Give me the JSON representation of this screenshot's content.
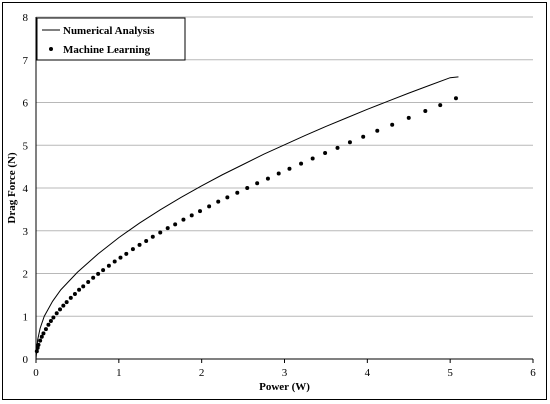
{
  "chart_data": {
    "type": "line",
    "title": "",
    "xlabel": "Power (W)",
    "ylabel": "Drag Force (N)",
    "xlim": [
      0,
      6
    ],
    "ylim": [
      0,
      8
    ],
    "xticks": [
      "0",
      "1",
      "2",
      "3",
      "4",
      "5",
      "6"
    ],
    "yticks": [
      "0",
      "1",
      "2",
      "3",
      "4",
      "5",
      "6",
      "7",
      "8"
    ],
    "grid": "horizontal",
    "legend_position": "top-left",
    "series": [
      {
        "name": "Numerical Analysis",
        "style": "line",
        "color": "#000000",
        "x": [
          0,
          0.02,
          0.05,
          0.1,
          0.2,
          0.3,
          0.5,
          0.75,
          1.0,
          1.25,
          1.5,
          1.75,
          2.0,
          2.25,
          2.5,
          2.75,
          3.0,
          3.25,
          3.5,
          3.75,
          4.0,
          4.25,
          4.5,
          4.75,
          5.0,
          5.1
        ],
        "y": [
          0,
          0.45,
          0.72,
          1.0,
          1.35,
          1.62,
          2.03,
          2.46,
          2.84,
          3.18,
          3.49,
          3.78,
          4.05,
          4.31,
          4.55,
          4.79,
          5.01,
          5.23,
          5.44,
          5.64,
          5.84,
          6.03,
          6.22,
          6.4,
          6.58,
          6.6
        ]
      },
      {
        "name": "Machine Learning",
        "style": "markers",
        "color": "#000000",
        "x": [
          0.01,
          0.02,
          0.03,
          0.05,
          0.07,
          0.09,
          0.12,
          0.15,
          0.18,
          0.21,
          0.25,
          0.29,
          0.33,
          0.37,
          0.42,
          0.47,
          0.52,
          0.57,
          0.63,
          0.69,
          0.75,
          0.81,
          0.88,
          0.95,
          1.02,
          1.09,
          1.17,
          1.25,
          1.33,
          1.41,
          1.5,
          1.59,
          1.68,
          1.78,
          1.88,
          1.98,
          2.09,
          2.2,
          2.31,
          2.43,
          2.55,
          2.67,
          2.8,
          2.93,
          3.06,
          3.2,
          3.34,
          3.49,
          3.64,
          3.79,
          3.95,
          4.12,
          4.3,
          4.5,
          4.7,
          4.88,
          5.07
        ],
        "y": [
          0.18,
          0.26,
          0.33,
          0.43,
          0.52,
          0.6,
          0.7,
          0.8,
          0.89,
          0.97,
          1.07,
          1.16,
          1.25,
          1.33,
          1.43,
          1.52,
          1.62,
          1.7,
          1.8,
          1.9,
          1.99,
          2.08,
          2.18,
          2.28,
          2.37,
          2.46,
          2.57,
          2.67,
          2.76,
          2.86,
          2.96,
          3.06,
          3.15,
          3.26,
          3.36,
          3.46,
          3.57,
          3.68,
          3.78,
          3.89,
          4.0,
          4.11,
          4.22,
          4.34,
          4.45,
          4.57,
          4.69,
          4.82,
          4.94,
          5.07,
          5.2,
          5.34,
          5.48,
          5.64,
          5.8,
          5.94,
          6.1
        ]
      }
    ]
  }
}
